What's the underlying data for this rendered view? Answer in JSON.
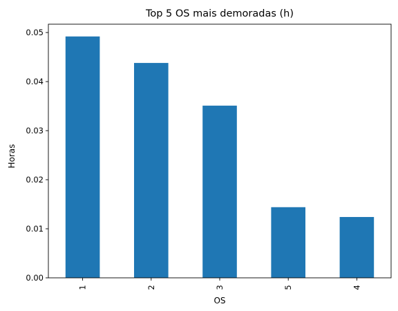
{
  "chart_data": {
    "type": "bar",
    "title": "Top 5 OS mais demoradas (h)",
    "xlabel": "OS",
    "ylabel": "Horas",
    "categories": [
      "1",
      "2",
      "3",
      "5",
      "4"
    ],
    "values": [
      0.0492,
      0.0438,
      0.0351,
      0.0144,
      0.0124
    ],
    "ylim": [
      0,
      0.0517
    ],
    "yticks": [
      0.0,
      0.01,
      0.02,
      0.03,
      0.04,
      0.05
    ],
    "ytick_labels": [
      "0.00",
      "0.01",
      "0.02",
      "0.03",
      "0.04",
      "0.05"
    ],
    "bar_color": "#1f77b4",
    "grid": false,
    "legend": "none"
  }
}
